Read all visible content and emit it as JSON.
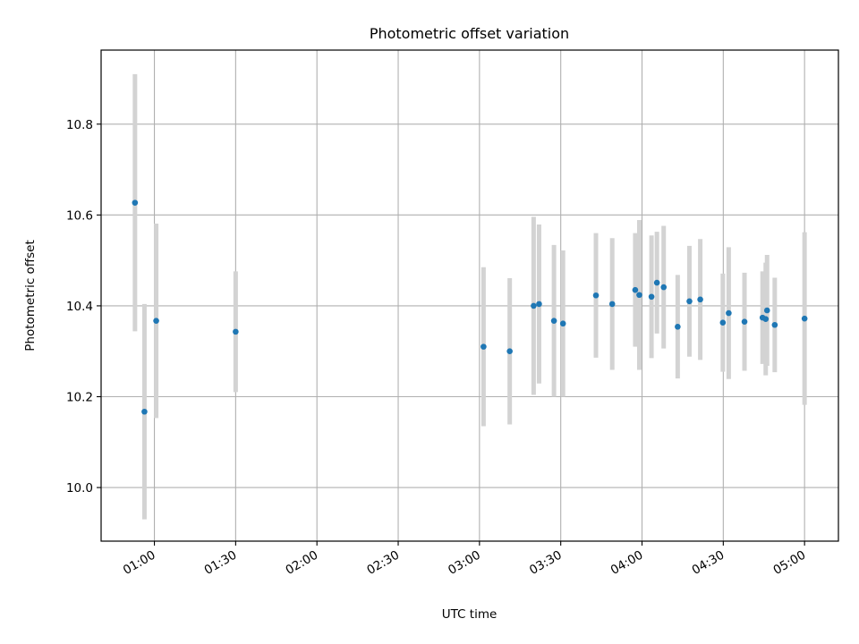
{
  "chart_data": {
    "type": "scatter",
    "title": "Photometric offset variation",
    "xlabel": "UTC time",
    "ylabel": "Photometric offset",
    "xlim": [
      "00:40:20",
      "05:12:30"
    ],
    "ylim": [
      9.882,
      10.963
    ],
    "grid": true,
    "x_ticks": [
      "01:00",
      "01:30",
      "02:00",
      "02:30",
      "03:00",
      "03:30",
      "04:00",
      "04:30",
      "05:00"
    ],
    "y_ticks": [
      "10.0",
      "10.2",
      "10.4",
      "10.6",
      "10.8"
    ],
    "point_color": "#1f77b4",
    "errorbar_color": "#d3d3d3",
    "points": [
      {
        "t": "00:52:50",
        "y": 10.627,
        "err": 0.283
      },
      {
        "t": "00:56:20",
        "y": 10.167,
        "err": 0.237
      },
      {
        "t": "01:00:40",
        "y": 10.367,
        "err": 0.214
      },
      {
        "t": "01:30:00",
        "y": 10.343,
        "err": 0.133
      },
      {
        "t": "03:01:30",
        "y": 10.31,
        "err": 0.175
      },
      {
        "t": "03:11:10",
        "y": 10.3,
        "err": 0.161
      },
      {
        "t": "03:20:00",
        "y": 10.4,
        "err": 0.196
      },
      {
        "t": "03:22:00",
        "y": 10.404,
        "err": 0.175
      },
      {
        "t": "03:27:30",
        "y": 10.367,
        "err": 0.167
      },
      {
        "t": "03:30:50",
        "y": 10.361,
        "err": 0.161
      },
      {
        "t": "03:43:00",
        "y": 10.423,
        "err": 0.137
      },
      {
        "t": "03:49:00",
        "y": 10.404,
        "err": 0.145
      },
      {
        "t": "03:57:30",
        "y": 10.435,
        "err": 0.125
      },
      {
        "t": "03:59:00",
        "y": 10.424,
        "err": 0.165
      },
      {
        "t": "04:03:30",
        "y": 10.42,
        "err": 0.135
      },
      {
        "t": "04:05:30",
        "y": 10.451,
        "err": 0.112
      },
      {
        "t": "04:08:00",
        "y": 10.441,
        "err": 0.135
      },
      {
        "t": "04:13:10",
        "y": 10.354,
        "err": 0.114
      },
      {
        "t": "04:17:30",
        "y": 10.41,
        "err": 0.122
      },
      {
        "t": "04:21:30",
        "y": 10.414,
        "err": 0.133
      },
      {
        "t": "04:29:50",
        "y": 10.363,
        "err": 0.108
      },
      {
        "t": "04:32:00",
        "y": 10.384,
        "err": 0.145
      },
      {
        "t": "04:37:50",
        "y": 10.365,
        "err": 0.108
      },
      {
        "t": "04:44:30",
        "y": 10.374,
        "err": 0.102
      },
      {
        "t": "04:45:40",
        "y": 10.371,
        "err": 0.124
      },
      {
        "t": "04:46:10",
        "y": 10.39,
        "err": 0.122
      },
      {
        "t": "04:49:00",
        "y": 10.358,
        "err": 0.104
      },
      {
        "t": "05:00:00",
        "y": 10.372,
        "err": 0.19
      }
    ]
  }
}
